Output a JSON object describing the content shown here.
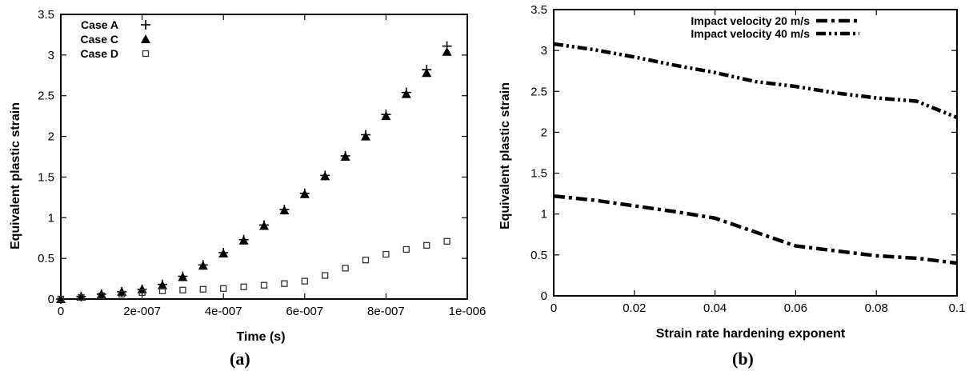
{
  "chart_data": [
    {
      "type": "scatter",
      "panel_label": "(a)",
      "xlabel": "Time (s)",
      "ylabel": "Equivalent plastic strain",
      "xlim": [
        0,
        1e-06
      ],
      "ylim": [
        0,
        3.5
      ],
      "x_ticks": [
        0,
        2e-07,
        4e-07,
        6e-07,
        8e-07,
        1e-06
      ],
      "x_tick_labels": [
        "0",
        "2e-007",
        "4e-007",
        "6e-007",
        "8e-007",
        "1e-006"
      ],
      "y_ticks": [
        0,
        0.5,
        1,
        1.5,
        2,
        2.5,
        3,
        3.5
      ],
      "y_tick_labels": [
        "0",
        "0.5",
        "1",
        "1.5",
        "2",
        "2.5",
        "3",
        "3.5"
      ],
      "legend_position": "top-left",
      "x": [
        0,
        5e-08,
        1e-07,
        1.5e-07,
        2e-07,
        2.5e-07,
        3e-07,
        3.5e-07,
        4e-07,
        4.5e-07,
        5e-07,
        5.5e-07,
        6e-07,
        6.5e-07,
        7e-07,
        7.5e-07,
        8e-07,
        8.5e-07,
        9e-07,
        9.5e-07
      ],
      "series": [
        {
          "name": "Case A",
          "marker": "plus",
          "values": [
            0,
            0.03,
            0.06,
            0.09,
            0.12,
            0.18,
            0.28,
            0.42,
            0.57,
            0.73,
            0.91,
            1.1,
            1.3,
            1.52,
            1.76,
            2.02,
            2.27,
            2.54,
            2.82,
            3.11
          ]
        },
        {
          "name": "Case C",
          "marker": "triangle",
          "values": [
            0,
            0.03,
            0.06,
            0.09,
            0.12,
            0.17,
            0.27,
            0.41,
            0.56,
            0.72,
            0.9,
            1.09,
            1.29,
            1.51,
            1.75,
            2.0,
            2.25,
            2.52,
            2.78,
            3.04
          ]
        },
        {
          "name": "Case D",
          "marker": "square",
          "values": [
            0,
            0.02,
            0.04,
            0.06,
            0.08,
            0.1,
            0.11,
            0.12,
            0.13,
            0.15,
            0.17,
            0.19,
            0.22,
            0.29,
            0.38,
            0.48,
            0.55,
            0.61,
            0.66,
            0.71
          ]
        }
      ]
    },
    {
      "type": "line",
      "panel_label": "(b)",
      "xlabel": "Strain rate hardening exponent",
      "ylabel": "Equivalent plastic strain",
      "xlim": [
        0,
        0.1
      ],
      "ylim": [
        0,
        3.5
      ],
      "x_ticks": [
        0,
        0.02,
        0.04,
        0.06,
        0.08,
        0.1
      ],
      "x_tick_labels": [
        "0",
        "0.02",
        "0.04",
        "0.06",
        "0.08",
        "0.1"
      ],
      "y_ticks": [
        0,
        0.5,
        1,
        1.5,
        2,
        2.5,
        3,
        3.5
      ],
      "y_tick_labels": [
        "0",
        "0.5",
        "1",
        "1.5",
        "2",
        "2.5",
        "3",
        "3.5"
      ],
      "legend_position": "top-center",
      "x": [
        0,
        0.01,
        0.02,
        0.03,
        0.04,
        0.05,
        0.06,
        0.07,
        0.08,
        0.09,
        0.1
      ],
      "series": [
        {
          "name": "Impact velocity 20 m/s",
          "dash": "dash-dot",
          "values": [
            1.22,
            1.17,
            1.1,
            1.03,
            0.95,
            0.78,
            0.61,
            0.55,
            0.49,
            0.46,
            0.4
          ]
        },
        {
          "name": "Impact velocity 40 m/s",
          "dash": "dash-dot-dot",
          "values": [
            3.08,
            3.01,
            2.92,
            2.82,
            2.73,
            2.62,
            2.56,
            2.48,
            2.42,
            2.38,
            2.18
          ]
        }
      ]
    }
  ]
}
